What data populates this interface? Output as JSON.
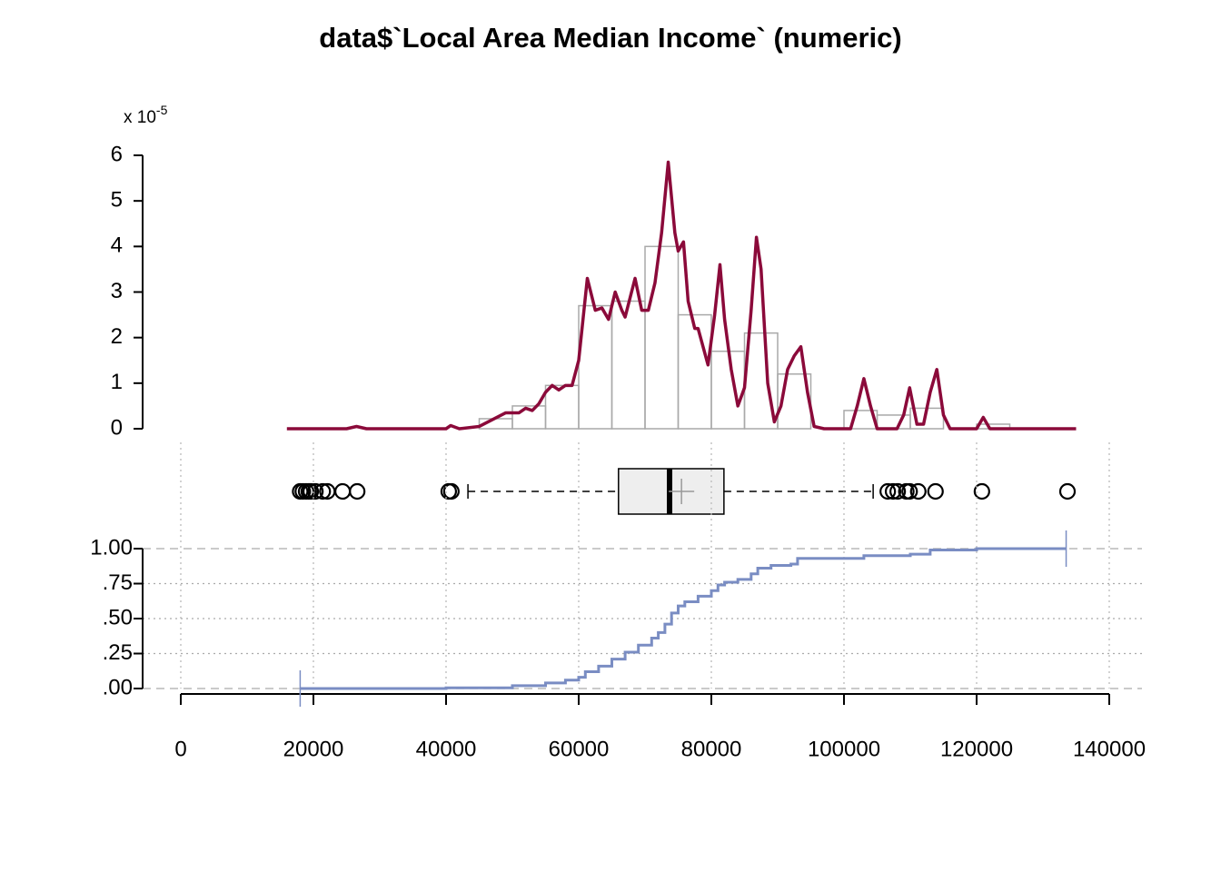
{
  "chart_data": [
    {
      "type": "histogram",
      "title": "data$`Local Area Median Income` (numeric)",
      "y_scale_label": "x 10",
      "y_scale_exponent": "-5",
      "bins": [
        15000,
        20000,
        25000,
        30000,
        35000,
        40000,
        45000,
        50000,
        55000,
        60000,
        65000,
        70000,
        75000,
        80000,
        85000,
        90000,
        95000,
        100000,
        105000,
        110000,
        115000,
        120000,
        125000
      ],
      "values": [
        0,
        0,
        0,
        0,
        0,
        0,
        0.22,
        0.5,
        0.95,
        2.7,
        2.8,
        4.0,
        2.5,
        1.7,
        2.1,
        1.2,
        0,
        0.4,
        0.3,
        0.45,
        0,
        0.1
      ],
      "color": "#a9a9a9",
      "density": {
        "color": "#8b0a3a",
        "x": [
          16000,
          25000,
          26500,
          28000,
          40000,
          40700,
          42000,
          45000,
          47000,
          49000,
          51000,
          52000,
          53000,
          54000,
          55000,
          56000,
          57000,
          58000,
          59000,
          60000,
          61300,
          62500,
          63500,
          64500,
          65500,
          66500,
          67000,
          68500,
          69500,
          70500,
          71500,
          72500,
          73500,
          74500,
          75000,
          75800,
          76500,
          77500,
          78000,
          79500,
          80500,
          81300,
          82000,
          83000,
          84000,
          85000,
          86000,
          86800,
          87500,
          88500,
          89500,
          90500,
          91500,
          92500,
          93500,
          94500,
          95500,
          97000,
          101000,
          102000,
          103000,
          104000,
          105000,
          108000,
          109000,
          109900,
          111000,
          112000,
          113000,
          114000,
          115000,
          116000,
          120000,
          121000,
          122000,
          135000
        ],
        "y": [
          0,
          0,
          0.05,
          0,
          0,
          0.07,
          0,
          0.05,
          0.2,
          0.35,
          0.35,
          0.45,
          0.4,
          0.55,
          0.8,
          0.95,
          0.85,
          0.95,
          0.95,
          1.5,
          3.3,
          2.6,
          2.65,
          2.4,
          3.0,
          2.6,
          2.45,
          3.3,
          2.6,
          2.6,
          3.2,
          4.3,
          5.85,
          4.3,
          3.9,
          4.1,
          2.8,
          2.2,
          2.2,
          1.4,
          2.5,
          3.6,
          2.4,
          1.3,
          0.5,
          0.9,
          2.6,
          4.2,
          3.5,
          1.0,
          0.15,
          0.5,
          1.3,
          1.6,
          1.8,
          0.8,
          0.05,
          0,
          0,
          0.5,
          1.1,
          0.5,
          0,
          0,
          0.3,
          0.9,
          0.1,
          0.1,
          0.8,
          1.3,
          0.3,
          0,
          0,
          0.25,
          0,
          0
        ]
      },
      "xlim": [
        0,
        140000
      ],
      "ylim": [
        0,
        6
      ],
      "yticks": [
        0,
        1,
        2,
        3,
        4,
        5,
        6
      ]
    },
    {
      "type": "box",
      "xlim": [
        0,
        140000
      ],
      "whisker_low": 43300,
      "q1": 66000,
      "median": 73700,
      "mean": 75500,
      "q3": 81900,
      "whisker_high": 104400,
      "outliers": [
        18000,
        18400,
        18900,
        19300,
        19600,
        20300,
        21400,
        22100,
        24400,
        26600,
        40400,
        40800,
        106600,
        107400,
        108100,
        109400,
        109900,
        111200,
        113800,
        120800,
        133700
      ],
      "color": "#eeeeee"
    },
    {
      "type": "ecdf",
      "color": "#7a8dc3",
      "x": [
        18000,
        40000,
        50000,
        55000,
        58000,
        60000,
        61000,
        63000,
        65000,
        67000,
        69000,
        71000,
        72000,
        73000,
        74000,
        75000,
        76000,
        78000,
        80000,
        81000,
        82000,
        84000,
        86000,
        87000,
        89000,
        92000,
        93000,
        100000,
        103000,
        110000,
        113000,
        120000,
        133500
      ],
      "y": [
        0,
        0.005,
        0.02,
        0.04,
        0.06,
        0.08,
        0.12,
        0.16,
        0.21,
        0.26,
        0.31,
        0.36,
        0.4,
        0.46,
        0.54,
        0.59,
        0.62,
        0.66,
        0.7,
        0.74,
        0.76,
        0.78,
        0.82,
        0.86,
        0.88,
        0.89,
        0.93,
        0.93,
        0.95,
        0.96,
        0.99,
        1.0,
        1.0
      ],
      "xlim": [
        0,
        140000
      ],
      "xticks": [
        0,
        20000,
        40000,
        60000,
        80000,
        100000,
        120000,
        140000
      ],
      "ylim": [
        0,
        1
      ],
      "yticks": [
        {
          "value": 0,
          "label": ".00"
        },
        {
          "value": 0.25,
          "label": ".25"
        },
        {
          "value": 0.5,
          "label": ".50"
        },
        {
          "value": 0.75,
          "label": ".75"
        },
        {
          "value": 1,
          "label": "1.00"
        }
      ]
    }
  ]
}
